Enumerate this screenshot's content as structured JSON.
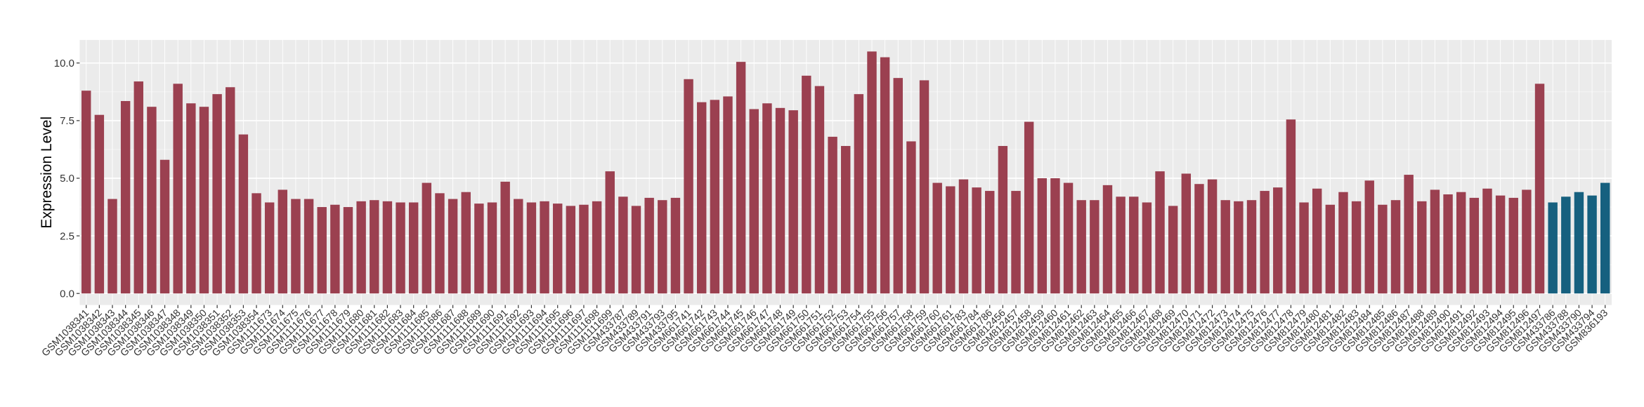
{
  "chart_data": {
    "type": "bar",
    "y_label": "Expression Level",
    "categories": [
      "GSM1038341",
      "GSM1038342",
      "GSM1038343",
      "GSM1038344",
      "GSM1038345",
      "GSM1038346",
      "GSM1038347",
      "GSM1038348",
      "GSM1038349",
      "GSM1038350",
      "GSM1038351",
      "GSM1038352",
      "GSM1038353",
      "GSM1038354",
      "GSM1111673",
      "GSM1111674",
      "GSM1111675",
      "GSM1111676",
      "GSM1111677",
      "GSM1111678",
      "GSM1111679",
      "GSM1111680",
      "GSM1111681",
      "GSM1111682",
      "GSM1111683",
      "GSM1111684",
      "GSM1111685",
      "GSM1111686",
      "GSM1111687",
      "GSM1111688",
      "GSM1111689",
      "GSM1111690",
      "GSM1111691",
      "GSM1111692",
      "GSM1111693",
      "GSM1111694",
      "GSM1111695",
      "GSM1111696",
      "GSM1111697",
      "GSM1111698",
      "GSM1111699",
      "GSM433787",
      "GSM433789",
      "GSM433791",
      "GSM433793",
      "GSM433795",
      "GSM661741",
      "GSM661742",
      "GSM661743",
      "GSM661744",
      "GSM661745",
      "GSM661746",
      "GSM661747",
      "GSM661748",
      "GSM661749",
      "GSM661750",
      "GSM661751",
      "GSM661752",
      "GSM661753",
      "GSM661754",
      "GSM661755",
      "GSM661756",
      "GSM661757",
      "GSM661758",
      "GSM661759",
      "GSM661760",
      "GSM661761",
      "GSM661783",
      "GSM661784",
      "GSM661786",
      "GSM812456",
      "GSM812457",
      "GSM812458",
      "GSM812459",
      "GSM812460",
      "GSM812461",
      "GSM812462",
      "GSM812463",
      "GSM812464",
      "GSM812465",
      "GSM812466",
      "GSM812467",
      "GSM812468",
      "GSM812469",
      "GSM812470",
      "GSM812471",
      "GSM812472",
      "GSM812473",
      "GSM812474",
      "GSM812475",
      "GSM812476",
      "GSM812477",
      "GSM812478",
      "GSM812479",
      "GSM812480",
      "GSM812481",
      "GSM812482",
      "GSM812483",
      "GSM812484",
      "GSM812485",
      "GSM812486",
      "GSM812487",
      "GSM812488",
      "GSM812489",
      "GSM812490",
      "GSM812491",
      "GSM812492",
      "GSM812493",
      "GSM812494",
      "GSM812495",
      "GSM812496",
      "GSM812497",
      "GSM433786",
      "GSM433788",
      "GSM433790",
      "GSM433794",
      "GSM836193"
    ],
    "values": [
      8.8,
      7.75,
      4.1,
      8.35,
      9.2,
      8.1,
      5.8,
      9.1,
      8.25,
      8.1,
      8.65,
      8.95,
      6.9,
      4.35,
      3.95,
      4.5,
      4.1,
      4.1,
      3.75,
      3.85,
      3.75,
      4.0,
      4.05,
      4.0,
      3.95,
      3.95,
      4.8,
      4.35,
      4.1,
      4.4,
      3.9,
      3.95,
      4.85,
      4.1,
      3.95,
      4.0,
      3.9,
      3.8,
      3.85,
      4.0,
      5.3,
      4.2,
      3.8,
      4.15,
      4.05,
      4.15,
      9.3,
      8.3,
      8.4,
      8.55,
      10.05,
      8.0,
      8.25,
      8.05,
      7.95,
      9.45,
      9.0,
      6.8,
      6.4,
      8.65,
      10.5,
      10.25,
      9.35,
      6.6,
      9.25,
      4.8,
      4.65,
      4.95,
      4.6,
      4.45,
      6.4,
      4.45,
      7.45,
      5.0,
      5.0,
      4.8,
      4.05,
      4.05,
      4.7,
      4.2,
      4.2,
      3.95,
      5.3,
      3.8,
      5.2,
      4.75,
      4.95,
      4.05,
      4.0,
      4.05,
      4.45,
      4.6,
      7.55,
      3.95,
      4.55,
      3.85,
      4.4,
      4.0,
      4.9,
      3.85,
      4.05,
      5.15,
      4.0,
      4.5,
      4.3,
      4.4,
      4.15,
      4.55,
      4.25,
      4.15,
      4.5,
      9.1,
      3.95,
      4.2,
      4.4,
      4.25,
      4.8
    ],
    "colors": [
      "#9b4050",
      "#9b4050",
      "#9b4050",
      "#9b4050",
      "#9b4050",
      "#9b4050",
      "#9b4050",
      "#9b4050",
      "#9b4050",
      "#9b4050",
      "#9b4050",
      "#9b4050",
      "#9b4050",
      "#9b4050",
      "#9b4050",
      "#9b4050",
      "#9b4050",
      "#9b4050",
      "#9b4050",
      "#9b4050",
      "#9b4050",
      "#9b4050",
      "#9b4050",
      "#9b4050",
      "#9b4050",
      "#9b4050",
      "#9b4050",
      "#9b4050",
      "#9b4050",
      "#9b4050",
      "#9b4050",
      "#9b4050",
      "#9b4050",
      "#9b4050",
      "#9b4050",
      "#9b4050",
      "#9b4050",
      "#9b4050",
      "#9b4050",
      "#9b4050",
      "#9b4050",
      "#9b4050",
      "#9b4050",
      "#9b4050",
      "#9b4050",
      "#9b4050",
      "#9b4050",
      "#9b4050",
      "#9b4050",
      "#9b4050",
      "#9b4050",
      "#9b4050",
      "#9b4050",
      "#9b4050",
      "#9b4050",
      "#9b4050",
      "#9b4050",
      "#9b4050",
      "#9b4050",
      "#9b4050",
      "#9b4050",
      "#9b4050",
      "#9b4050",
      "#9b4050",
      "#9b4050",
      "#9b4050",
      "#9b4050",
      "#9b4050",
      "#9b4050",
      "#9b4050",
      "#9b4050",
      "#9b4050",
      "#9b4050",
      "#9b4050",
      "#9b4050",
      "#9b4050",
      "#9b4050",
      "#9b4050",
      "#9b4050",
      "#9b4050",
      "#9b4050",
      "#9b4050",
      "#9b4050",
      "#9b4050",
      "#9b4050",
      "#9b4050",
      "#9b4050",
      "#9b4050",
      "#9b4050",
      "#9b4050",
      "#9b4050",
      "#9b4050",
      "#9b4050",
      "#9b4050",
      "#9b4050",
      "#9b4050",
      "#9b4050",
      "#9b4050",
      "#9b4050",
      "#9b4050",
      "#9b4050",
      "#9b4050",
      "#9b4050",
      "#9b4050",
      "#9b4050",
      "#9b4050",
      "#9b4050",
      "#9b4050",
      "#9b4050",
      "#9b4050",
      "#9b4050",
      "#9b4050",
      "#16607f",
      "#16607f",
      "#16607f",
      "#16607f",
      "#16607f"
    ],
    "ylim": [
      -0.5,
      11.0
    ],
    "yticks": [
      {
        "value": 0,
        "label": "0.0"
      },
      2.5,
      {
        "value": 5,
        "label": "5.0"
      },
      7.5,
      {
        "value": 10,
        "label": "10.0"
      }
    ],
    "grid": true
  }
}
